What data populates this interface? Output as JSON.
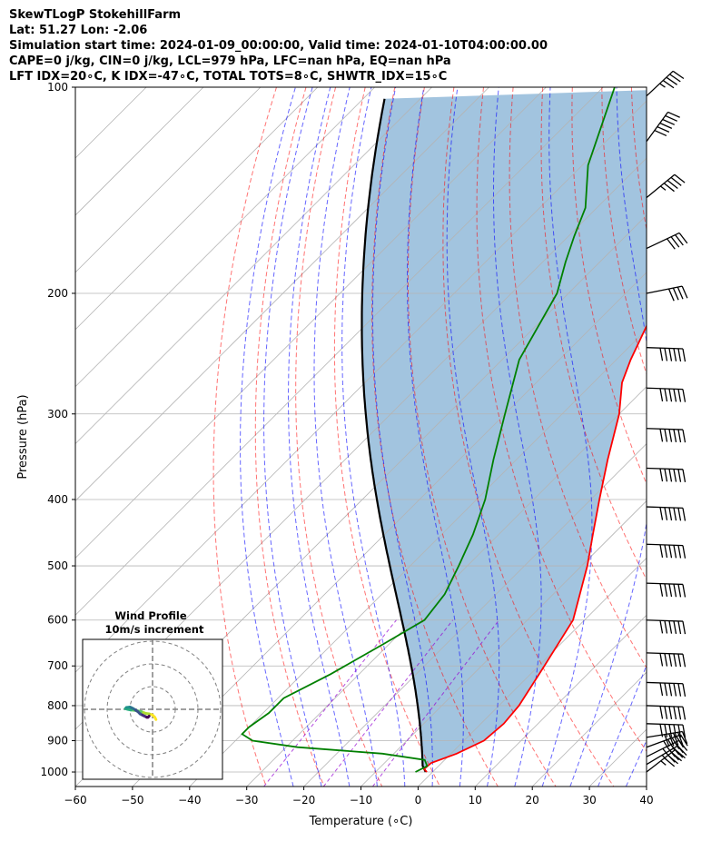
{
  "header": {
    "line1": "SkewTLogP StokehillFarm",
    "line2": "Lat: 51.27   Lon: -2.06",
    "line3": "Simulation start time: 2024-01-09_00:00:00, Valid time: 2024-01-10T04:00:00.00",
    "line4": "CAPE=0 j/kg, CIN=0 j/kg, LCL=979 hPa, LFC=nan hPa, EQ=nan hPa",
    "line5": "LFT IDX=20∘C, K IDX=-47∘C, TOTAL TOTS=8∘C, SHWTR_IDX=15∘C"
  },
  "chart_data": {
    "type": "line",
    "title": "",
    "xlabel": "Temperature (∘C)",
    "ylabel": "Pressure (hPa)",
    "xlim": [
      -60,
      40
    ],
    "ylim": [
      1050,
      100
    ],
    "y_scale": "log",
    "skew": true,
    "grid": true,
    "x_ticks": [
      "−60",
      "−50",
      "−40",
      "−30",
      "−20",
      "−10",
      "0",
      "10",
      "20",
      "30",
      "40"
    ],
    "x_tick_values": [
      -60,
      -50,
      -40,
      -30,
      -20,
      -10,
      0,
      10,
      20,
      30,
      40
    ],
    "y_ticks": [
      "100",
      "200",
      "300",
      "400",
      "500",
      "600",
      "700",
      "800",
      "900",
      "1000"
    ],
    "y_tick_values": [
      100,
      200,
      300,
      400,
      500,
      600,
      700,
      800,
      900,
      1000
    ],
    "colors": {
      "temperature": "#ff0000",
      "dewpoint": "#008000",
      "parcel": "#000000",
      "fill": "#a2c4df",
      "dry_adiabat": "#ff0000",
      "moist_adiabat": "#0000ff",
      "mixing_ratio": "#9400d3",
      "isotherm": "#808080"
    },
    "series": [
      {
        "key": "temperature",
        "points": [
          [
            1000,
            -1.0
          ],
          [
            990,
            -2.0
          ],
          [
            970,
            -1.8
          ],
          [
            940,
            1.0
          ],
          [
            900,
            3.5
          ],
          [
            850,
            4.0
          ],
          [
            800,
            3.5
          ],
          [
            700,
            1.0
          ],
          [
            600,
            -2.0
          ],
          [
            500,
            -9.0
          ],
          [
            450,
            -13.5
          ],
          [
            400,
            -18.5
          ],
          [
            350,
            -24.0
          ],
          [
            300,
            -30.0
          ],
          [
            270,
            -35.0
          ],
          [
            250,
            -37.5
          ],
          [
            220,
            -41.0
          ],
          [
            200,
            -45.0
          ],
          [
            180,
            -49.0
          ],
          [
            160,
            -53.0
          ],
          [
            140,
            -57.0
          ],
          [
            120,
            -62.0
          ],
          [
            110,
            -64.0
          ],
          [
            100,
            -67.0
          ]
        ]
      },
      {
        "key": "dewpoint",
        "points": [
          [
            1000,
            -3.0
          ],
          [
            980,
            -2.0
          ],
          [
            960,
            -3.5
          ],
          [
            940,
            -12.0
          ],
          [
            920,
            -28.0
          ],
          [
            900,
            -37.0
          ],
          [
            880,
            -40.0
          ],
          [
            860,
            -40.0
          ],
          [
            820,
            -39.0
          ],
          [
            780,
            -39.0
          ],
          [
            720,
            -35.0
          ],
          [
            650,
            -31.0
          ],
          [
            600,
            -28.0
          ],
          [
            550,
            -29.0
          ],
          [
            500,
            -31.5
          ],
          [
            450,
            -34.5
          ],
          [
            400,
            -38.5
          ],
          [
            350,
            -44.0
          ],
          [
            300,
            -50.0
          ],
          [
            250,
            -57.0
          ],
          [
            200,
            -62.0
          ],
          [
            180,
            -66.0
          ],
          [
            165,
            -69.0
          ],
          [
            150,
            -72.0
          ],
          [
            130,
            -79.0
          ],
          [
            100,
            -88.0
          ]
        ]
      }
    ],
    "parcel_start": {
      "pressure": 1000,
      "temperature": -1.2
    }
  },
  "hodograph": {
    "title": "Wind Profile",
    "subtitle": "10m/s increment",
    "colormap": [
      "#fde725",
      "#addc30",
      "#5ec962",
      "#28ae80",
      "#21918c",
      "#2c728e",
      "#3b528b",
      "#472d7b",
      "#440154"
    ],
    "points": [
      [
        1.5,
        -4.5
      ],
      [
        1.0,
        -3.5
      ],
      [
        0.0,
        -2.5
      ],
      [
        -1.5,
        -2.0
      ],
      [
        -3.0,
        -1.8
      ],
      [
        -5.0,
        -1.0
      ],
      [
        -7.5,
        -0.5
      ],
      [
        -9.5,
        -0.3
      ],
      [
        -11.0,
        0.0
      ],
      [
        -12.0,
        0.3
      ],
      [
        -11.5,
        0.8
      ],
      [
        -10.0,
        1.0
      ],
      [
        -9.5,
        0.8
      ],
      [
        -8.5,
        0.3
      ],
      [
        -7.5,
        -0.3
      ],
      [
        -6.5,
        -1.0
      ],
      [
        -5.5,
        -2.0
      ],
      [
        -4.5,
        -2.5
      ],
      [
        -3.5,
        -3.0
      ],
      [
        -2.5,
        -3.5
      ],
      [
        -2.0,
        -3.5
      ],
      [
        -1.5,
        -3.0
      ]
    ]
  },
  "wind_barbs": [
    {
      "pressure": 103,
      "u": 16,
      "v": 15
    },
    {
      "pressure": 120,
      "u": 19,
      "v": 26
    },
    {
      "pressure": 145,
      "u": 17,
      "v": 14
    },
    {
      "pressure": 172,
      "u": 19,
      "v": 9
    },
    {
      "pressure": 200,
      "u": 20,
      "v": 4
    },
    {
      "pressure": 240,
      "u": 30,
      "v": -1
    },
    {
      "pressure": 275,
      "u": 30,
      "v": -1
    },
    {
      "pressure": 315,
      "u": 30,
      "v": -1
    },
    {
      "pressure": 360,
      "u": 30,
      "v": -1
    },
    {
      "pressure": 410,
      "u": 30,
      "v": -1
    },
    {
      "pressure": 465,
      "u": 30,
      "v": -1
    },
    {
      "pressure": 530,
      "u": 30,
      "v": -1
    },
    {
      "pressure": 600,
      "u": 30,
      "v": -1
    },
    {
      "pressure": 670,
      "u": 30,
      "v": -1
    },
    {
      "pressure": 740,
      "u": 30,
      "v": -1
    },
    {
      "pressure": 800,
      "u": 30,
      "v": -1
    },
    {
      "pressure": 850,
      "u": 30,
      "v": -1
    },
    {
      "pressure": 890,
      "u": 25,
      "v": 4
    },
    {
      "pressure": 920,
      "u": 22,
      "v": 8
    },
    {
      "pressure": 950,
      "u": 20,
      "v": 10
    },
    {
      "pressure": 975,
      "u": 20,
      "v": 12
    },
    {
      "pressure": 1000,
      "u": 18,
      "v": 14
    }
  ]
}
